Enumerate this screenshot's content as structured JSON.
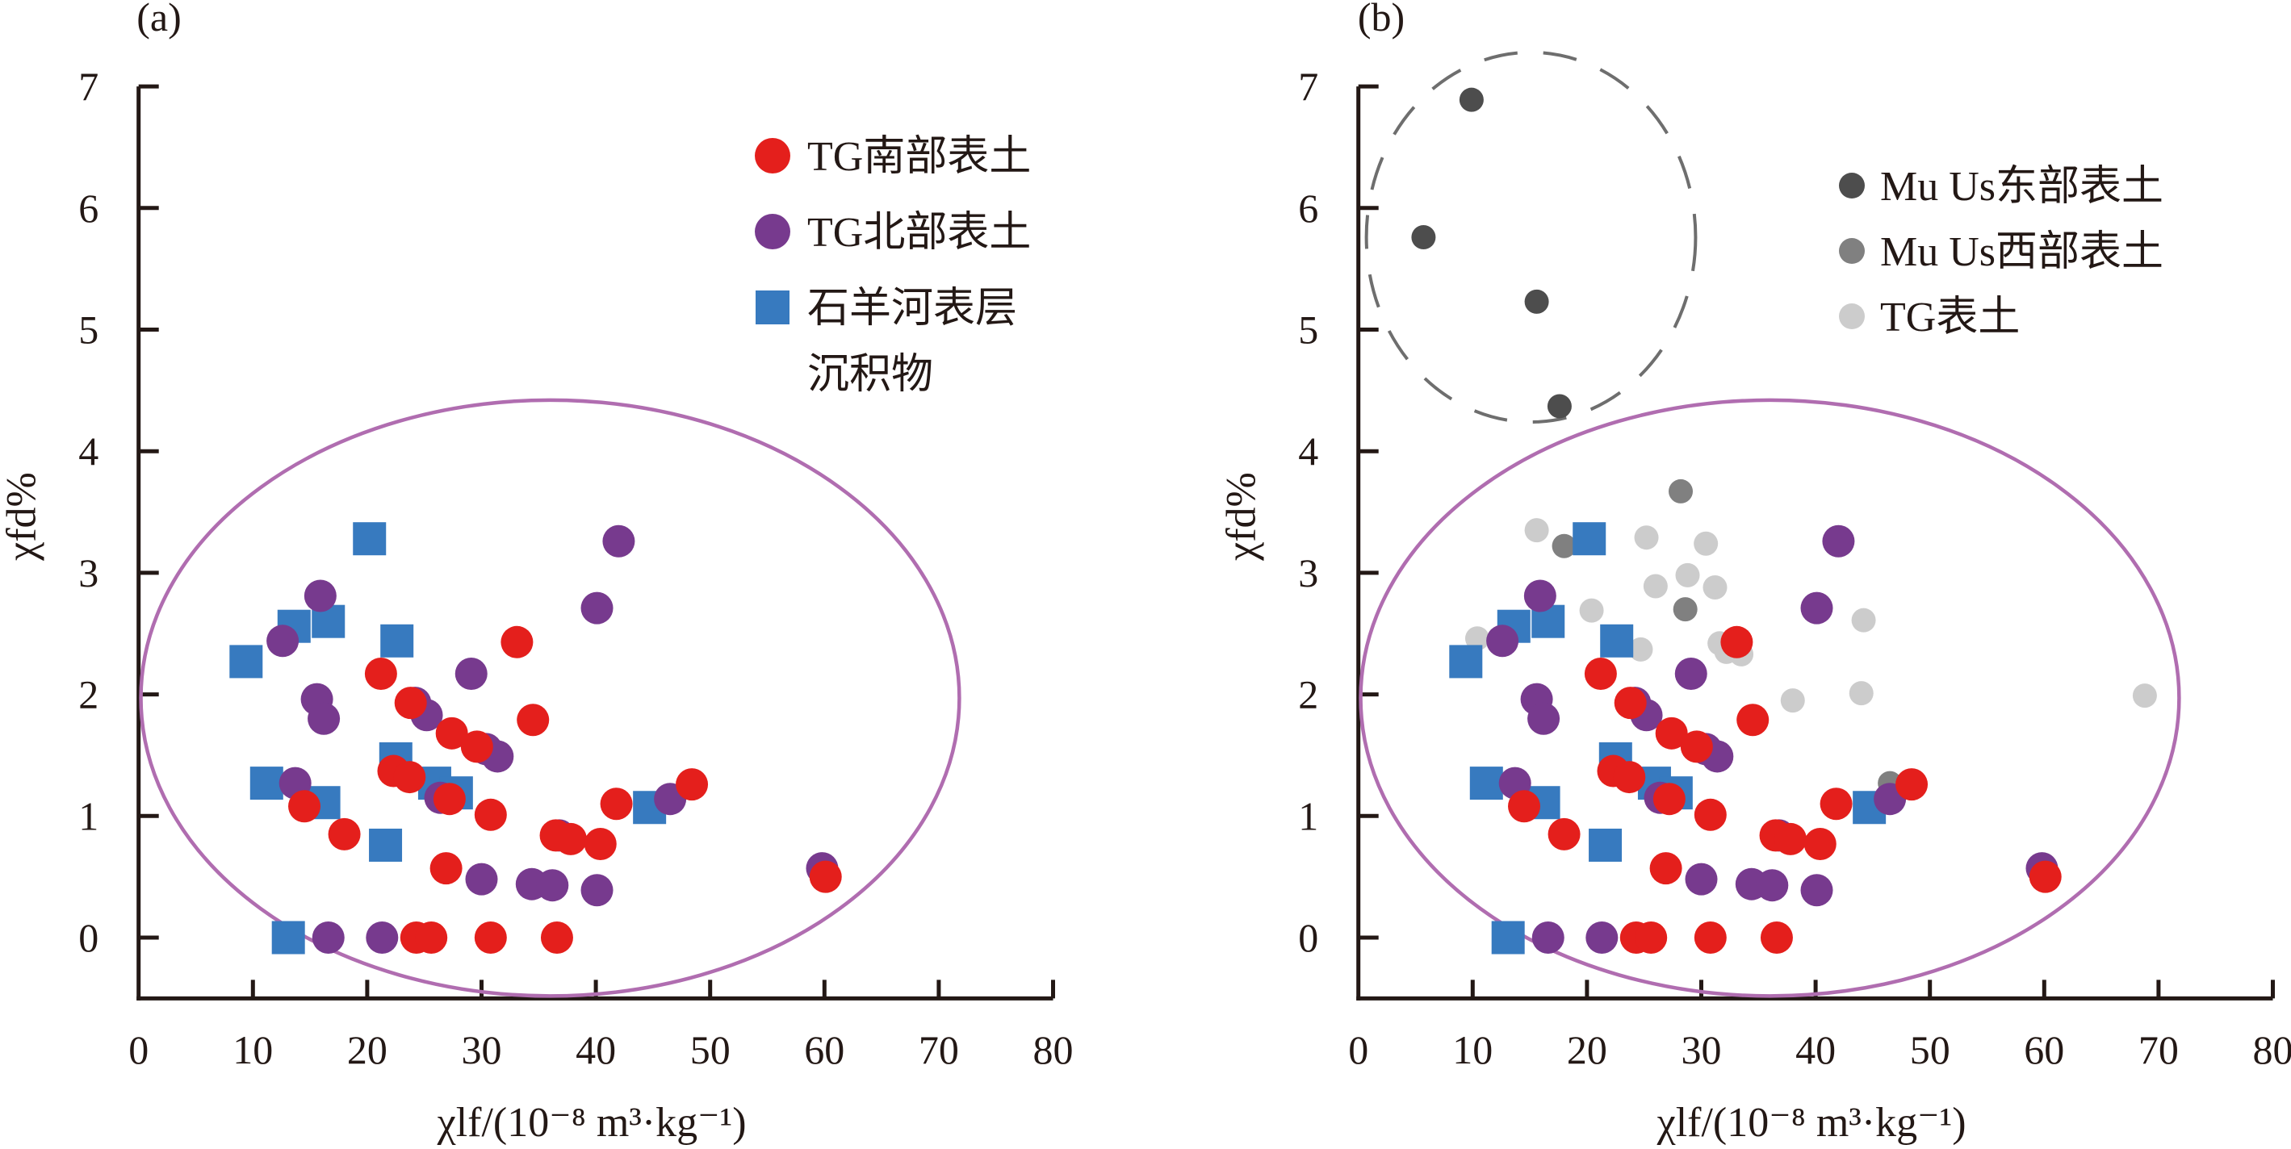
{
  "colors": {
    "tg_south": "#e41f1c",
    "tg_north": "#773a8e",
    "shiyang": "#377abf",
    "muus_east": "#4d4d4d",
    "muus_west": "#808080",
    "tg_surface": "#cccccc",
    "ellipse": "#b06db0",
    "dashed_ellipse": "#6e6e6e",
    "axis": "#231815"
  },
  "chart_data": [
    {
      "id": "a",
      "type": "scatter",
      "panel_label": "(a)",
      "xlabel": "χlf/(10⁻⁸ m³·kg⁻¹)",
      "ylabel": "χfd%",
      "xlim": [
        0,
        80
      ],
      "ylim": [
        -0.5,
        7
      ],
      "xticks": [
        0,
        10,
        20,
        30,
        40,
        50,
        60,
        70,
        80
      ],
      "yticks": [
        0,
        1,
        2,
        3,
        4,
        5,
        6,
        7
      ],
      "grid": false,
      "legend_position": "top-right",
      "legend": [
        {
          "name": "TG南部表土",
          "marker": "circle",
          "color_key": "tg_south"
        },
        {
          "name": "TG北部表土",
          "marker": "circle",
          "color_key": "tg_north"
        },
        {
          "name": "石羊河表层",
          "name_line2": "沉积物",
          "marker": "square",
          "color_key": "shiyang"
        }
      ],
      "series": [
        {
          "name": "石羊河表层沉积物",
          "marker": "square",
          "color_key": "shiyang",
          "size": "large",
          "points": [
            [
              20.2,
              3.28
            ],
            [
              13.6,
              2.56
            ],
            [
              16.6,
              2.6
            ],
            [
              9.4,
              2.27
            ],
            [
              22.6,
              2.44
            ],
            [
              22.5,
              1.47
            ],
            [
              25.9,
              1.27
            ],
            [
              27.8,
              1.19
            ],
            [
              11.2,
              1.27
            ],
            [
              16.2,
              1.11
            ],
            [
              21.6,
              0.76
            ],
            [
              44.7,
              1.07
            ],
            [
              13.1,
              0
            ]
          ]
        },
        {
          "name": "TG北部表土",
          "marker": "circle",
          "color_key": "tg_north",
          "size": "large",
          "points": [
            [
              15.9,
              2.81
            ],
            [
              12.6,
              2.44
            ],
            [
              15.6,
              1.96
            ],
            [
              16.2,
              1.8
            ],
            [
              29.1,
              2.17
            ],
            [
              24.2,
              1.93
            ],
            [
              25.2,
              1.83
            ],
            [
              30.4,
              1.55
            ],
            [
              31.4,
              1.49
            ],
            [
              13.7,
              1.27
            ],
            [
              26.4,
              1.15
            ],
            [
              42.0,
              3.26
            ],
            [
              40.1,
              2.71
            ],
            [
              46.5,
              1.14
            ],
            [
              36.8,
              0.84
            ],
            [
              30.0,
              0.48
            ],
            [
              34.4,
              0.44
            ],
            [
              36.2,
              0.43
            ],
            [
              40.1,
              0.39
            ],
            [
              59.8,
              0.57
            ],
            [
              16.6,
              0
            ],
            [
              21.3,
              0
            ]
          ]
        },
        {
          "name": "TG南部表土",
          "marker": "circle",
          "color_key": "tg_south",
          "size": "large",
          "points": [
            [
              21.2,
              2.17
            ],
            [
              33.1,
              2.43
            ],
            [
              34.5,
              1.79
            ],
            [
              23.8,
              1.93
            ],
            [
              27.4,
              1.68
            ],
            [
              29.6,
              1.57
            ],
            [
              22.3,
              1.37
            ],
            [
              23.7,
              1.32
            ],
            [
              27.2,
              1.14
            ],
            [
              14.5,
              1.08
            ],
            [
              18.0,
              0.85
            ],
            [
              30.8,
              1.01
            ],
            [
              41.8,
              1.1
            ],
            [
              48.4,
              1.26
            ],
            [
              36.5,
              0.84
            ],
            [
              37.8,
              0.81
            ],
            [
              40.4,
              0.77
            ],
            [
              26.9,
              0.57
            ],
            [
              60.1,
              0.5
            ],
            [
              24.3,
              0
            ],
            [
              25.6,
              0
            ],
            [
              30.8,
              0
            ],
            [
              36.6,
              0
            ]
          ]
        }
      ],
      "ellipses": [
        {
          "cx": 36.0,
          "cy": 1.97,
          "rx": 35.8,
          "ry": 2.45,
          "style": "solid",
          "color_key": "ellipse"
        }
      ]
    },
    {
      "id": "b",
      "type": "scatter",
      "panel_label": "(b)",
      "xlabel": "χlf/(10⁻⁸ m³·kg⁻¹)",
      "ylabel": "χfd%",
      "xlim": [
        0,
        80
      ],
      "ylim": [
        -0.5,
        7
      ],
      "xticks": [
        0,
        10,
        20,
        30,
        40,
        50,
        60,
        70,
        80
      ],
      "yticks": [
        0,
        1,
        2,
        3,
        4,
        5,
        6,
        7
      ],
      "grid": false,
      "legend_position": "top-right",
      "legend": [
        {
          "name": "Mu Us东部表土",
          "marker": "circle",
          "color_key": "muus_east"
        },
        {
          "name": "Mu Us西部表土",
          "marker": "circle",
          "color_key": "muus_west"
        },
        {
          "name": "TG表土",
          "marker": "circle",
          "color_key": "tg_surface"
        }
      ],
      "series": [
        {
          "name": "TG表土",
          "marker": "circle",
          "color_key": "tg_surface",
          "size": "small",
          "points": [
            [
              15.6,
              3.35
            ],
            [
              25.2,
              3.29
            ],
            [
              30.4,
              3.24
            ],
            [
              28.8,
              2.98
            ],
            [
              26.0,
              2.89
            ],
            [
              31.2,
              2.88
            ],
            [
              20.4,
              2.69
            ],
            [
              10.4,
              2.46
            ],
            [
              24.7,
              2.37
            ],
            [
              31.6,
              2.42
            ],
            [
              32.2,
              2.35
            ],
            [
              33.5,
              2.33
            ],
            [
              44.2,
              2.61
            ],
            [
              38.0,
              1.95
            ],
            [
              44.0,
              2.01
            ],
            [
              68.8,
              1.99
            ]
          ]
        },
        {
          "name": "Mu Us西部表土",
          "marker": "circle",
          "color_key": "muus_west",
          "size": "small",
          "points": [
            [
              28.2,
              3.67
            ],
            [
              18.0,
              3.22
            ],
            [
              28.6,
              2.7
            ],
            [
              46.5,
              1.27
            ]
          ]
        },
        {
          "name": "Mu Us东部表土",
          "marker": "circle",
          "color_key": "muus_east",
          "size": "small",
          "points": [
            [
              9.9,
              6.89
            ],
            [
              5.7,
              5.76
            ],
            [
              15.6,
              5.23
            ],
            [
              17.6,
              4.37
            ]
          ]
        },
        {
          "name": "石羊河表层沉积物",
          "marker": "square",
          "color_key": "shiyang",
          "size": "large",
          "points": [
            [
              20.2,
              3.28
            ],
            [
              13.6,
              2.56
            ],
            [
              16.6,
              2.6
            ],
            [
              9.4,
              2.27
            ],
            [
              22.6,
              2.44
            ],
            [
              22.5,
              1.47
            ],
            [
              25.9,
              1.27
            ],
            [
              27.8,
              1.19
            ],
            [
              11.2,
              1.27
            ],
            [
              16.2,
              1.11
            ],
            [
              21.6,
              0.76
            ],
            [
              44.7,
              1.07
            ],
            [
              13.1,
              0
            ]
          ]
        },
        {
          "name": "TG北部表土",
          "marker": "circle",
          "color_key": "tg_north",
          "size": "large",
          "points": [
            [
              15.9,
              2.81
            ],
            [
              12.6,
              2.44
            ],
            [
              15.6,
              1.96
            ],
            [
              16.2,
              1.8
            ],
            [
              29.1,
              2.17
            ],
            [
              24.2,
              1.93
            ],
            [
              25.2,
              1.83
            ],
            [
              30.4,
              1.55
            ],
            [
              31.4,
              1.49
            ],
            [
              13.7,
              1.27
            ],
            [
              26.4,
              1.15
            ],
            [
              42.0,
              3.26
            ],
            [
              40.1,
              2.71
            ],
            [
              46.5,
              1.14
            ],
            [
              36.8,
              0.84
            ],
            [
              30.0,
              0.48
            ],
            [
              34.4,
              0.44
            ],
            [
              36.2,
              0.43
            ],
            [
              40.1,
              0.39
            ],
            [
              59.8,
              0.57
            ],
            [
              16.6,
              0
            ],
            [
              21.3,
              0
            ]
          ]
        },
        {
          "name": "TG南部表土",
          "marker": "circle",
          "color_key": "tg_south",
          "size": "large",
          "points": [
            [
              21.2,
              2.17
            ],
            [
              33.1,
              2.43
            ],
            [
              34.5,
              1.79
            ],
            [
              23.8,
              1.93
            ],
            [
              27.4,
              1.68
            ],
            [
              29.6,
              1.57
            ],
            [
              22.3,
              1.37
            ],
            [
              23.7,
              1.32
            ],
            [
              27.2,
              1.14
            ],
            [
              14.5,
              1.08
            ],
            [
              18.0,
              0.85
            ],
            [
              30.8,
              1.01
            ],
            [
              41.8,
              1.1
            ],
            [
              48.4,
              1.26
            ],
            [
              36.5,
              0.84
            ],
            [
              37.8,
              0.81
            ],
            [
              40.4,
              0.77
            ],
            [
              26.9,
              0.57
            ],
            [
              60.1,
              0.5
            ],
            [
              24.3,
              0
            ],
            [
              25.6,
              0
            ],
            [
              30.8,
              0
            ],
            [
              36.6,
              0
            ]
          ]
        }
      ],
      "ellipses": [
        {
          "cx": 36.0,
          "cy": 1.97,
          "rx": 35.8,
          "ry": 2.45,
          "style": "solid",
          "color_key": "ellipse"
        },
        {
          "cx": 15.1,
          "cy": 5.76,
          "rx": 14.4,
          "ry": 1.52,
          "style": "dashed",
          "color_key": "dashed_ellipse"
        }
      ]
    }
  ]
}
